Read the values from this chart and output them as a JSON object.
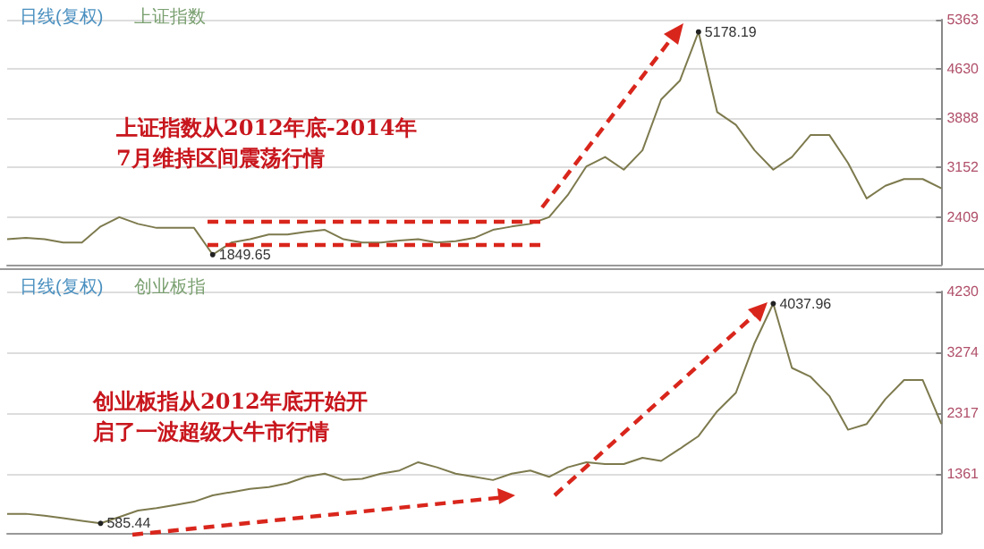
{
  "chart_data": [
    {
      "type": "line",
      "title": "日线(复权)",
      "subtitle": "上证指数",
      "color": "#7d7a4e",
      "annotations": [
        "上证指数从2012年底-2014年7月维持区间震荡行情",
        "5178.19",
        "1849.65"
      ],
      "categories": [
        null,
        null,
        null,
        null,
        null,
        null,
        null,
        null,
        null,
        null,
        null,
        null,
        null,
        null,
        null,
        null,
        null,
        null,
        null,
        null,
        null,
        null,
        null,
        null,
        null,
        null,
        null,
        null,
        null,
        null,
        null,
        null,
        null,
        null,
        null,
        null,
        null,
        null,
        null,
        null,
        null,
        null,
        null,
        null,
        null,
        null,
        null,
        null,
        null,
        null,
        null
      ],
      "values": [
        2080,
        2100,
        2080,
        2030,
        2030,
        2270,
        2410,
        2310,
        2250,
        2250,
        2250,
        1850,
        2030,
        2080,
        2150,
        2150,
        2190,
        2220,
        2080,
        2030,
        2030,
        2060,
        2080,
        2030,
        2050,
        2100,
        2220,
        2270,
        2310,
        2410,
        2740,
        3170,
        3310,
        3120,
        3410,
        4170,
        4450,
        5180,
        3980,
        3790,
        3410,
        3120,
        3310,
        3640,
        3640,
        3220,
        2690,
        2880,
        2980,
        2980,
        2840
      ],
      "ylim": [
        1700,
        5363
      ],
      "yticks": [
        2409,
        3152,
        3888,
        4630,
        5363
      ],
      "grid": "y",
      "tick_labels": "y"
    },
    {
      "type": "line",
      "title": "日线(复权)",
      "subtitle": "创业板指",
      "color": "#7d7a4e",
      "annotations": [
        "创业板指从2012年底开始开启了一波超级大牛市行情",
        "4037.96",
        "585.44"
      ],
      "categories": [
        null,
        null,
        null,
        null,
        null,
        null,
        null,
        null,
        null,
        null,
        null,
        null,
        null,
        null,
        null,
        null,
        null,
        null,
        null,
        null,
        null,
        null,
        null,
        null,
        null,
        null,
        null,
        null,
        null,
        null,
        null,
        null,
        null,
        null,
        null,
        null,
        null,
        null,
        null,
        null,
        null,
        null,
        null,
        null,
        null,
        null,
        null,
        null,
        null,
        null,
        null
      ],
      "values": [
        740,
        740,
        710,
        670,
        630,
        590,
        690,
        790,
        830,
        880,
        930,
        1030,
        1080,
        1130,
        1160,
        1220,
        1320,
        1370,
        1270,
        1290,
        1370,
        1420,
        1550,
        1470,
        1370,
        1320,
        1270,
        1370,
        1420,
        1320,
        1470,
        1550,
        1520,
        1520,
        1620,
        1570,
        1760,
        1960,
        2350,
        2640,
        3420,
        4040,
        3030,
        2890,
        2590,
        2060,
        2150,
        2540,
        2840,
        2840,
        2150
      ],
      "ylim": [
        440,
        4230
      ],
      "yticks": [
        1361,
        2317,
        3274,
        4230
      ],
      "grid": "y",
      "tick_labels": "y"
    }
  ]
}
